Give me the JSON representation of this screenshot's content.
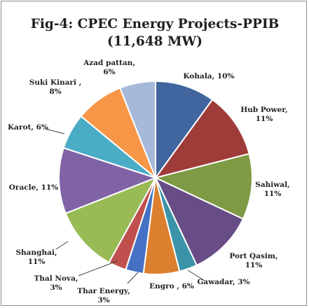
{
  "chart_data": {
    "type": "pie",
    "title_line1": "Fig-4: CPEC Energy Projects-PPIB",
    "title_line2": "(11,648 MW)",
    "slices": [
      {
        "name": "Kohala",
        "value": 10,
        "label_l1": "Kohala, 10%",
        "label_l2": "",
        "color": "#41659e"
      },
      {
        "name": "Hub Power",
        "value": 11,
        "label_l1": "Hub Power,",
        "label_l2": "11%",
        "color": "#9e3c3a"
      },
      {
        "name": "Sahiwal",
        "value": 11,
        "label_l1": "Sahiwal,",
        "label_l2": "11%",
        "color": "#7e9a45"
      },
      {
        "name": "Port Qasim",
        "value": 11,
        "label_l1": "Port Qasim,",
        "label_l2": "11%",
        "color": "#674c85"
      },
      {
        "name": "Gawadar",
        "value": 3,
        "label_l1": "Gawadar, 3%",
        "label_l2": "",
        "color": "#3a93a8"
      },
      {
        "name": "Engro",
        "value": 6,
        "label_l1": "Engro , 6%",
        "label_l2": "",
        "color": "#dc7f2e"
      },
      {
        "name": "Thar Energy",
        "value": 3,
        "label_l1": "Thar Energy,",
        "label_l2": "3%",
        "color": "#4471c4"
      },
      {
        "name": "Thal Nova",
        "value": 3,
        "label_l1": "Thal Nova,",
        "label_l2": "3%",
        "color": "#c0504d"
      },
      {
        "name": "Shanghai",
        "value": 11,
        "label_l1": "Shanghai,",
        "label_l2": "11%",
        "color": "#98bb55"
      },
      {
        "name": "Oracle",
        "value": 11,
        "label_l1": "Oracle, 11%",
        "label_l2": "",
        "color": "#7f63a5"
      },
      {
        "name": "Karot",
        "value": 6,
        "label_l1": "Karot, 6%",
        "label_l2": "",
        "color": "#4bacc6"
      },
      {
        "name": "Suki Kinari",
        "value": 8,
        "label_l1": "Suki Kinari ,",
        "label_l2": "8%",
        "color": "#f79646"
      },
      {
        "name": "Azad pattan",
        "value": 6,
        "label_l1": "Azad pattan,",
        "label_l2": "6%",
        "color": "#a7b9da"
      }
    ]
  }
}
